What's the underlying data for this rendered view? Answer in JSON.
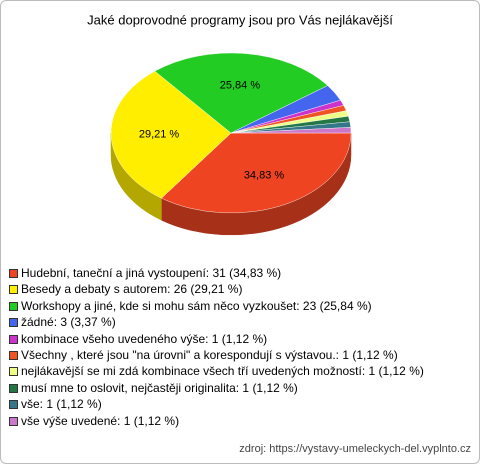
{
  "chart_data": {
    "type": "pie",
    "title": "Jaké doprovodné programy jsou pro Vás nejlákavější",
    "categories": [
      "Hudební, taneční a jiná vystoupení: 31 (34,83 %)",
      "Besedy a debaty s autorem: 26 (29,21 %)",
      "Workshopy a jiné, kde si mohu sám něco vyzkoušet: 23 (25,84 %)",
      "žádné: 3 (3,37 %)",
      "kombinace všeho uvedeného výše: 1 (1,12 %)",
      "Všechny , které jsou \"na úrovni\" a korespondují s výstavou.: 1 (1,12 %)",
      "nejlákavější se mi zdá kombinace všech tří uvedených možností: 1 (1,12 %)",
      "musí mne to oslovit, nejčastěji originalita: 1 (1,12 %)",
      "vše: 1 (1,12 %)",
      "vše výše uvedené: 1 (1,12 %)"
    ],
    "values": [
      34.83,
      29.21,
      25.84,
      3.37,
      1.12,
      1.12,
      1.12,
      1.12,
      1.12,
      1.12
    ],
    "value_labels": [
      "34,83 %",
      "29,21 %",
      "25,84 %",
      null,
      null,
      null,
      null,
      null,
      null,
      null
    ],
    "colors": [
      "#ee4422",
      "#ffee00",
      "#22cc22",
      "#4466ee",
      "#cc33cc",
      "#ee5522",
      "#eeff88",
      "#227744",
      "#337788",
      "#cc77cc"
    ],
    "source": "zdroj: https://vystavy-umeleckych-del.vyplnto.cz"
  }
}
